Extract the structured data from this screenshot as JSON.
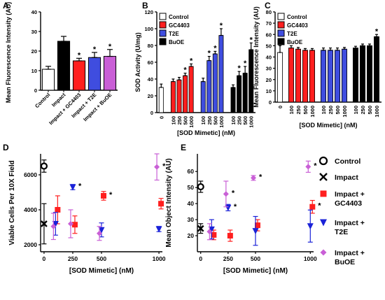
{
  "chart_data": [
    {
      "panel": "A",
      "type": "bar",
      "ylabel": "Mean Fluorescence Intensity (AU)",
      "ylim": [
        0,
        40
      ],
      "yticks": [
        0,
        10,
        20,
        30,
        40
      ],
      "categories": [
        "Control",
        "Impact",
        "Impact + GC4403",
        "Impact + T2E",
        "Impact + BuOE"
      ],
      "values": [
        10.7,
        25.0,
        15.0,
        16.7,
        17.3
      ],
      "errors": [
        1.5,
        2.5,
        1.3,
        2.6,
        3.5
      ],
      "colors": [
        "#ffffff",
        "#000000",
        "#ff1f1f",
        "#3f4ddf",
        "#c95fd6"
      ],
      "significant": [
        false,
        false,
        true,
        true,
        true
      ]
    },
    {
      "panel": "B",
      "type": "bar",
      "ylabel": "SOD Activity  (U/mg)",
      "xlabel": "[SOD Mimetic] (nM)",
      "ylim": [
        0,
        120
      ],
      "yticks": [
        0,
        20,
        40,
        60,
        80,
        100,
        120
      ],
      "legend": [
        "Control",
        "GC4403",
        "T2E",
        "BuOE"
      ],
      "legend_position": "top-left",
      "series": [
        {
          "name": "Control",
          "color": "#ffffff",
          "x": [
            "0"
          ],
          "values": [
            30
          ],
          "errors": [
            4
          ],
          "significant": [
            false
          ]
        },
        {
          "name": "GC4403",
          "color": "#ff1f1f",
          "x": [
            "100",
            "250",
            "500",
            "1000"
          ],
          "values": [
            37,
            39,
            44,
            55
          ],
          "errors": [
            3,
            3,
            3,
            3
          ],
          "significant": [
            false,
            false,
            true,
            true
          ]
        },
        {
          "name": "T2E",
          "color": "#3f4ddf",
          "x": [
            "100",
            "250",
            "500",
            "1000"
          ],
          "values": [
            37,
            62,
            70,
            92
          ],
          "errors": [
            4,
            5,
            3,
            8
          ],
          "significant": [
            false,
            true,
            true,
            true
          ]
        },
        {
          "name": "BuOE",
          "color": "#000000",
          "x": [
            "100",
            "250",
            "500",
            "1000"
          ],
          "values": [
            30,
            44,
            47,
            75
          ],
          "errors": [
            3,
            5,
            8,
            8
          ],
          "significant": [
            false,
            true,
            true,
            true
          ]
        }
      ]
    },
    {
      "panel": "C",
      "type": "bar",
      "ylabel": "Mean Fluorescence  Intensity (AU)",
      "xlabel": "[SOD Mimetic] (nM)",
      "ylim": [
        0,
        80
      ],
      "yticks": [
        0,
        10,
        20,
        30,
        40,
        50,
        60,
        70,
        80
      ],
      "legend": [
        "Control",
        "GC4403",
        "T2E",
        "BuOE"
      ],
      "legend_position": "top-left",
      "series": [
        {
          "name": "Control",
          "color": "#ffffff",
          "x": [
            "0"
          ],
          "values": [
            44
          ],
          "errors": [
            6
          ],
          "significant": [
            false
          ]
        },
        {
          "name": "GC4403",
          "color": "#ff1f1f",
          "x": [
            "100",
            "250",
            "500",
            "1000"
          ],
          "values": [
            48,
            47,
            46,
            46
          ],
          "errors": [
            2,
            1.5,
            1.5,
            1.5
          ],
          "significant": [
            false,
            false,
            false,
            false
          ]
        },
        {
          "name": "T2E",
          "color": "#3f4ddf",
          "x": [
            "100",
            "250",
            "500",
            "1000"
          ],
          "values": [
            46,
            46,
            46,
            47
          ],
          "errors": [
            2,
            2,
            2,
            1.5
          ],
          "significant": [
            false,
            false,
            false,
            false
          ]
        },
        {
          "name": "BuOE",
          "color": "#000000",
          "x": [
            "100",
            "250",
            "500",
            "1000"
          ],
          "values": [
            48,
            50,
            50,
            58
          ],
          "errors": [
            1.5,
            1.5,
            1.5,
            2
          ],
          "significant": [
            false,
            false,
            false,
            true
          ]
        }
      ]
    },
    {
      "panel": "D",
      "type": "scatter",
      "ylabel": "Viable Cells Per 10X Field",
      "xlabel": "[SOD Mimetic] (nM)",
      "xticks": [
        0,
        250,
        500,
        1000
      ],
      "xlim": [
        -30,
        1030
      ],
      "ylim": [
        1600,
        7200
      ],
      "yticks": [
        2000,
        4000,
        6000
      ],
      "series": [
        {
          "name": "Control",
          "marker": "circle",
          "color": "#000000",
          "points": [
            {
              "x": 0,
              "y": 6500,
              "err": 350,
              "sig": false
            }
          ]
        },
        {
          "name": "Impact",
          "marker": "x",
          "color": "#000000",
          "points": [
            {
              "x": 0,
              "y": 3200,
              "err": 1150,
              "sig": false
            }
          ]
        },
        {
          "name": "Impact + GC4403",
          "marker": "square",
          "color": "#ff1f1f",
          "points": [
            {
              "x": 100,
              "y": 4000,
              "err": 800,
              "sig": false
            },
            {
              "x": 250,
              "y": 3150,
              "err": 500,
              "sig": false
            },
            {
              "x": 500,
              "y": 4800,
              "err": 250,
              "sig": true
            },
            {
              "x": 1000,
              "y": 4350,
              "err": 300,
              "sig": false
            }
          ]
        },
        {
          "name": "Impact + T2E",
          "marker": "triangle-down",
          "color": "#1a22d8",
          "points": [
            {
              "x": 100,
              "y": 3200,
              "err": 650,
              "sig": false
            },
            {
              "x": 250,
              "y": 5300,
              "err": 150,
              "sig": true
            },
            {
              "x": 500,
              "y": 2850,
              "err": 400,
              "sig": false
            },
            {
              "x": 1000,
              "y": 2900,
              "err": 150,
              "sig": false
            }
          ]
        },
        {
          "name": "Impact + BuOE",
          "marker": "diamond",
          "color": "#c95fd6",
          "points": [
            {
              "x": 100,
              "y": 3050,
              "err": 750,
              "sig": false
            },
            {
              "x": 250,
              "y": 3200,
              "err": 800,
              "sig": false
            },
            {
              "x": 500,
              "y": 2650,
              "err": 400,
              "sig": false
            },
            {
              "x": 1000,
              "y": 6450,
              "err": 750,
              "sig": true
            }
          ]
        }
      ]
    },
    {
      "panel": "E",
      "type": "scatter",
      "ylabel": "Mean  Object Intensity (AU)",
      "xlabel": "[SOD Mimetic] (nM)",
      "xticks": [
        0,
        250,
        500,
        1000
      ],
      "xlim": [
        -30,
        1030
      ],
      "ylim": [
        10,
        71
      ],
      "yticks": [
        20,
        30,
        40,
        50,
        60
      ],
      "legend": [
        "Control",
        "Impact",
        "Impact +\nGC4403",
        "Impact +\nT2E",
        "Impact +\nBuOE"
      ],
      "legend_position": "right",
      "series": [
        {
          "name": "Control",
          "marker": "circle",
          "color": "#000000",
          "points": [
            {
              "x": 0,
              "y": 50.5,
              "err": 3.5,
              "sig": false
            }
          ]
        },
        {
          "name": "Impact",
          "marker": "x",
          "color": "#000000",
          "points": [
            {
              "x": 0,
              "y": 24.5,
              "err": 3,
              "sig": false
            }
          ]
        },
        {
          "name": "Impact + GC4403",
          "marker": "square",
          "color": "#ff1f1f",
          "points": [
            {
              "x": 100,
              "y": 20.5,
              "err": 3,
              "sig": false
            },
            {
              "x": 250,
              "y": 20,
              "err": 3.5,
              "sig": false
            },
            {
              "x": 500,
              "y": 26.5,
              "err": 3.5,
              "sig": false
            },
            {
              "x": 1000,
              "y": 38,
              "err": 4,
              "sig": true
            }
          ]
        },
        {
          "name": "Impact + T2E",
          "marker": "triangle-down",
          "color": "#1a22d8",
          "points": [
            {
              "x": 100,
              "y": 24,
              "err": 6,
              "sig": false
            },
            {
              "x": 250,
              "y": 37.5,
              "err": 2,
              "sig": true
            },
            {
              "x": 500,
              "y": 23,
              "err": 9,
              "sig": false
            },
            {
              "x": 1000,
              "y": 26,
              "err": 10,
              "sig": false
            }
          ]
        },
        {
          "name": "Impact + BuOE",
          "marker": "diamond",
          "color": "#c95fd6",
          "points": [
            {
              "x": 100,
              "y": 22.5,
              "err": 5,
              "sig": false
            },
            {
              "x": 250,
              "y": 46,
              "err": 8,
              "sig": true
            },
            {
              "x": 500,
              "y": 56,
              "err": 1.5,
              "sig": true
            },
            {
              "x": 1000,
              "y": 63,
              "err": 3.5,
              "sig": true
            }
          ]
        }
      ]
    }
  ]
}
